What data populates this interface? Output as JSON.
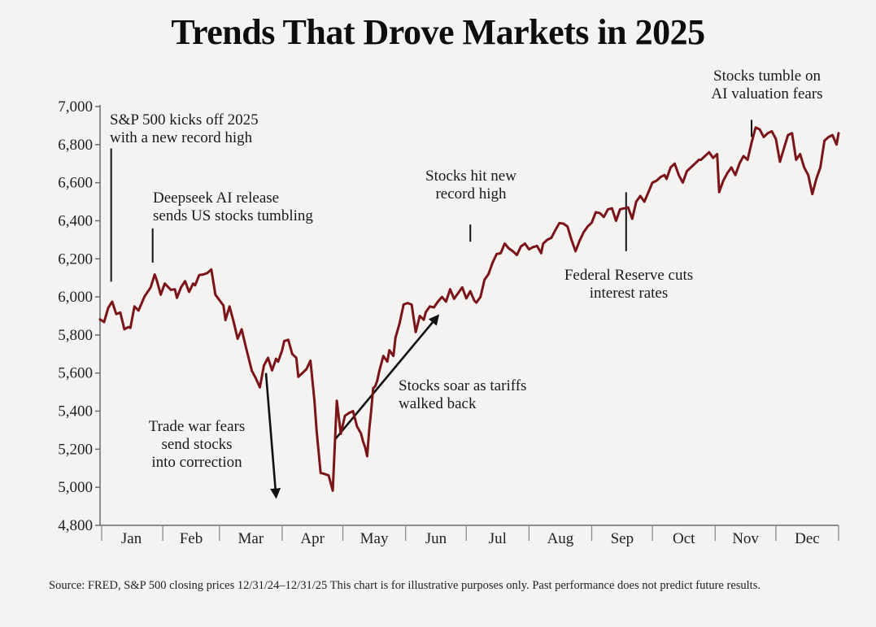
{
  "chart_data": {
    "type": "line",
    "title": "Trends That Drove Markets in 2025",
    "xlabel": "",
    "ylabel": "",
    "ylim": [
      4800,
      7000
    ],
    "yticks": [
      4800,
      5000,
      5200,
      5400,
      5600,
      5800,
      6000,
      6200,
      6400,
      6600,
      6800,
      7000
    ],
    "ytick_labels": [
      "4,800",
      "5,000",
      "5,200",
      "5,400",
      "5,600",
      "5,800",
      "6,000",
      "6,200",
      "6,400",
      "6,600",
      "6,800",
      "7,000"
    ],
    "xlim_days": [
      0,
      365
    ],
    "x_month_labels": [
      "Jan",
      "Feb",
      "Mar",
      "Apr",
      "May",
      "Jun",
      "Jul",
      "Aug",
      "Sep",
      "Oct",
      "Nov",
      "Dec"
    ],
    "grid": false,
    "legend": "none",
    "series": [
      {
        "name": "S&P 500 closing price",
        "color": "#7a1418",
        "x_day": [
          0,
          2,
          4,
          6,
          8,
          10,
          12,
          14,
          15,
          17,
          19,
          22,
          25,
          27,
          28,
          30,
          32,
          35,
          37,
          38,
          40,
          42,
          44,
          46,
          47,
          49,
          51,
          53,
          55,
          57,
          59,
          61,
          62,
          64,
          66,
          68,
          70,
          72,
          75,
          77,
          79,
          81,
          83,
          85,
          87,
          88,
          90,
          91,
          93,
          95,
          97,
          98,
          100,
          102,
          104,
          106,
          107,
          109,
          111,
          113,
          115,
          117,
          119,
          121,
          123,
          125,
          127,
          129,
          130,
          131,
          132,
          133,
          134,
          135,
          136,
          137,
          138,
          140,
          142,
          143,
          145,
          146,
          148,
          150,
          152,
          154,
          156,
          158,
          160,
          161,
          163,
          165,
          167,
          169,
          171,
          173,
          175,
          177,
          179,
          181,
          183,
          185,
          186,
          188,
          190,
          192,
          194,
          196,
          198,
          200,
          202,
          204,
          206,
          208,
          210,
          212,
          214,
          216,
          218,
          219,
          221,
          223,
          225,
          227,
          229,
          231,
          233,
          235,
          237,
          239,
          241,
          243,
          245,
          247,
          249,
          251,
          253,
          255,
          257,
          259,
          261,
          263,
          265,
          267,
          269,
          271,
          273,
          275,
          277,
          279,
          280,
          282,
          284,
          286,
          288,
          290,
          292,
          294,
          296,
          297,
          299,
          301,
          303,
          305,
          306,
          308,
          310,
          312,
          314,
          316,
          318,
          320,
          322,
          324,
          326,
          328,
          330,
          332,
          334,
          336,
          338,
          340,
          342,
          344,
          346,
          348,
          350,
          352,
          354,
          356,
          358,
          360,
          362,
          364,
          365
        ],
        "values": [
          5882,
          5868,
          5942,
          5975,
          5910,
          5918,
          5830,
          5842,
          5837,
          5950,
          5928,
          6002,
          6050,
          6118,
          6088,
          6012,
          6070,
          6037,
          6040,
          5995,
          6050,
          6083,
          6026,
          6070,
          6061,
          6115,
          6118,
          6125,
          6144,
          6012,
          5983,
          5955,
          5878,
          5950,
          5870,
          5780,
          5830,
          5740,
          5612,
          5572,
          5525,
          5640,
          5680,
          5614,
          5675,
          5660,
          5720,
          5768,
          5775,
          5700,
          5680,
          5580,
          5600,
          5620,
          5665,
          5450,
          5300,
          5075,
          5070,
          5062,
          4982,
          5455,
          5280,
          5375,
          5390,
          5400,
          5320,
          5282,
          5240,
          5210,
          5163,
          5300,
          5400,
          5520,
          5530,
          5560,
          5610,
          5690,
          5660,
          5720,
          5690,
          5785,
          5860,
          5960,
          5968,
          5960,
          5815,
          5900,
          5880,
          5920,
          5950,
          5945,
          5975,
          6000,
          5975,
          6040,
          5990,
          6020,
          6050,
          5992,
          6030,
          5980,
          5970,
          6000,
          6090,
          6120,
          6180,
          6225,
          6230,
          6280,
          6255,
          6240,
          6220,
          6265,
          6280,
          6250,
          6262,
          6268,
          6230,
          6280,
          6300,
          6310,
          6350,
          6388,
          6385,
          6370,
          6300,
          6240,
          6295,
          6340,
          6370,
          6390,
          6445,
          6440,
          6420,
          6460,
          6465,
          6400,
          6460,
          6465,
          6470,
          6410,
          6500,
          6530,
          6500,
          6550,
          6600,
          6610,
          6630,
          6640,
          6620,
          6680,
          6700,
          6640,
          6600,
          6660,
          6680,
          6700,
          6720,
          6720,
          6740,
          6760,
          6730,
          6750,
          6550,
          6610,
          6650,
          6680,
          6640,
          6700,
          6740,
          6720,
          6810,
          6890,
          6880,
          6840,
          6860,
          6870,
          6830,
          6710,
          6780,
          6850,
          6860,
          6720,
          6750,
          6680,
          6640,
          6540,
          6620,
          6680,
          6820,
          6840,
          6850,
          6800,
          6860,
          6880,
          6860,
          6840,
          6900,
          6830,
          6820,
          6730,
          6840,
          6870,
          6900,
          6930,
          6920,
          6900,
          6850
        ]
      }
    ],
    "annotations": [
      {
        "lines": [
          "S&P 500 kicks off 2025",
          "with a new record high"
        ],
        "x_day": 5.5,
        "y_from": 6780,
        "y_to": 6080,
        "type": "leader-line"
      },
      {
        "lines": [
          "Deepseek AI release",
          "sends US stocks tumbling"
        ],
        "x_day": 26,
        "y_from": 6360,
        "y_to": 6180,
        "type": "leader-line"
      },
      {
        "lines": [
          "Trade war fears",
          "send stocks",
          "into correction"
        ],
        "type": "arrow-down",
        "arrow_from": [
          82,
          5600
        ],
        "arrow_to": [
          87,
          4950
        ]
      },
      {
        "lines": [
          "Stocks soar as tariffs",
          "walked back"
        ],
        "type": "arrow-up",
        "arrow_from": [
          116,
          5250
        ],
        "arrow_to": [
          167,
          5900
        ]
      },
      {
        "lines": [
          "Stocks hit new",
          "record high"
        ],
        "x_day": 183,
        "y_from": 6380,
        "y_to": 6290,
        "type": "leader-line"
      },
      {
        "lines": [
          "Federal Reserve cuts",
          "interest rates"
        ],
        "x_day": 260,
        "y_from": 6550,
        "y_to": 6240,
        "type": "leader-line"
      },
      {
        "lines": [
          "Stocks tumble on",
          "AI valuation fears"
        ],
        "x_day": 322,
        "y_from": 6930,
        "y_to": 6840,
        "type": "leader-line"
      }
    ]
  },
  "footnote": "Source: FRED, S&P 500 closing prices 12/31/24–12/31/25  This chart is for illustrative purposes only. Past performance does not predict future results."
}
